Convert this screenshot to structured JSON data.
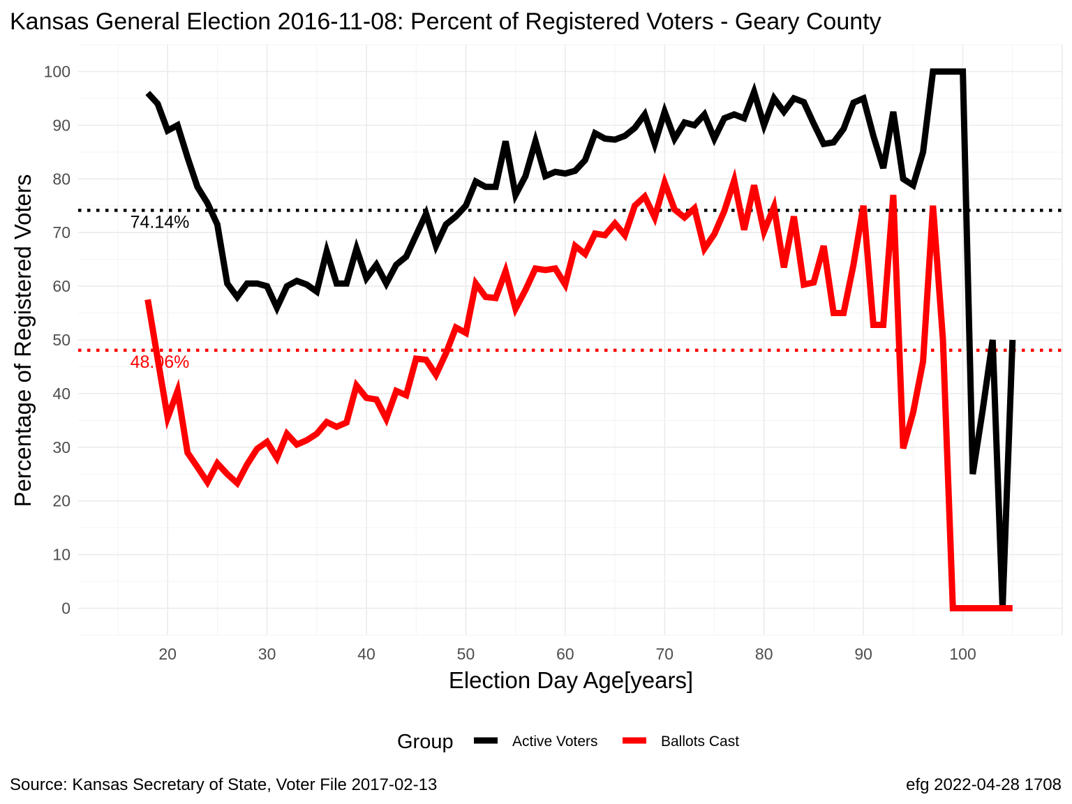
{
  "chart_data": {
    "type": "line",
    "title": "Kansas General Election 2016-11-08:  Percent of Registered Voters - Geary County",
    "xlabel": "Election Day Age[years]",
    "ylabel": "Percentage of Registered Voters",
    "xlim": [
      11,
      110
    ],
    "ylim": [
      -5,
      105
    ],
    "x_ticks": [
      20,
      30,
      40,
      50,
      60,
      70,
      80,
      90,
      100
    ],
    "y_ticks": [
      0,
      10,
      20,
      30,
      40,
      50,
      60,
      70,
      80,
      90,
      100
    ],
    "grid": true,
    "legend": {
      "title": "Group",
      "placement": "bottom",
      "entries": [
        "Active Voters",
        "Ballots Cast"
      ]
    },
    "series": [
      {
        "name": "Active Voters",
        "color": "#000000",
        "x": [
          18,
          19,
          20,
          21,
          22,
          23,
          24,
          25,
          26,
          27,
          28,
          29,
          30,
          31,
          32,
          33,
          34,
          35,
          36,
          37,
          38,
          39,
          40,
          41,
          42,
          43,
          44,
          45,
          46,
          47,
          48,
          49,
          50,
          51,
          52,
          53,
          54,
          55,
          56,
          57,
          58,
          59,
          60,
          61,
          62,
          63,
          64,
          65,
          66,
          67,
          68,
          69,
          70,
          71,
          72,
          73,
          74,
          75,
          76,
          77,
          78,
          79,
          80,
          81,
          82,
          83,
          84,
          85,
          86,
          87,
          88,
          89,
          90,
          91,
          92,
          93,
          94,
          95,
          96,
          97,
          98,
          99,
          100,
          101,
          102,
          103,
          104,
          105
        ],
        "values": [
          96,
          94,
          89,
          90,
          84,
          78.5,
          75.5,
          71.5,
          60.5,
          58,
          60.5,
          60.5,
          60,
          56,
          60,
          61,
          60.3,
          59,
          66.5,
          60.5,
          60.5,
          67,
          61.5,
          64,
          60.5,
          64,
          65.5,
          69.5,
          73.5,
          67.5,
          71.5,
          73,
          75,
          79.5,
          78.5,
          78.5,
          87,
          77,
          80.5,
          87,
          80.5,
          81.3,
          81,
          81.5,
          83.5,
          88.5,
          87.5,
          87.3,
          88,
          89.5,
          92,
          86.5,
          92.5,
          87.5,
          90.5,
          90,
          92,
          87.5,
          91.3,
          92,
          91.3,
          96.2,
          90,
          95,
          92.5,
          95,
          94.3,
          90.3,
          86.5,
          86.8,
          89.3,
          94.2,
          95,
          88,
          82,
          92.5,
          80,
          78.8,
          85,
          100,
          100,
          100,
          100,
          25,
          37,
          50,
          0,
          50
        ]
      },
      {
        "name": "Ballots Cast",
        "color": "#ff0000",
        "x": [
          18,
          19,
          20,
          21,
          22,
          23,
          24,
          25,
          26,
          27,
          28,
          29,
          30,
          31,
          32,
          33,
          34,
          35,
          36,
          37,
          38,
          39,
          40,
          41,
          42,
          43,
          44,
          45,
          46,
          47,
          48,
          49,
          50,
          51,
          52,
          53,
          54,
          55,
          56,
          57,
          58,
          59,
          60,
          61,
          62,
          63,
          64,
          65,
          66,
          67,
          68,
          69,
          70,
          71,
          72,
          73,
          74,
          75,
          76,
          77,
          78,
          79,
          80,
          81,
          82,
          83,
          84,
          85,
          86,
          87,
          88,
          89,
          90,
          91,
          92,
          93,
          94,
          95,
          96,
          97,
          98,
          99,
          100,
          101,
          102,
          103,
          104,
          105
        ],
        "values": [
          57.5,
          46.5,
          35.5,
          40.5,
          29,
          26.3,
          23.5,
          27,
          25,
          23.3,
          26.8,
          29.7,
          31,
          28,
          32.5,
          30.5,
          31.3,
          32.5,
          34.7,
          33.8,
          34.6,
          41.5,
          39.2,
          38.9,
          35.3,
          40.5,
          39.7,
          46.5,
          46.3,
          43.5,
          47.5,
          52.3,
          51.3,
          60.5,
          58,
          57.8,
          62.8,
          55.8,
          59.3,
          63.3,
          63,
          63.3,
          60.3,
          67.5,
          66,
          69.8,
          69.5,
          71.7,
          69.5,
          75,
          76.7,
          72.8,
          79.3,
          74.3,
          72.8,
          74.5,
          67,
          69.7,
          74,
          79.7,
          70.5,
          78.8,
          70.2,
          74.8,
          63.5,
          73,
          60.3,
          60.7,
          67.5,
          55,
          55,
          64,
          75,
          52.8,
          52.8,
          77,
          29.8,
          36.5,
          46,
          75,
          50,
          0,
          0,
          0,
          0,
          0,
          0,
          0
        ]
      }
    ],
    "reference_lines": [
      {
        "value": 74.14,
        "label": "74.14%",
        "color": "#000000",
        "style": "dotted"
      },
      {
        "value": 48.06,
        "label": "48.06%",
        "color": "#ff0000",
        "style": "dotted"
      }
    ]
  },
  "captions": {
    "source": "Source:  Kansas Secretary of State, Voter File  2017-02-13",
    "credit": "efg 2022-04-28 1708"
  }
}
